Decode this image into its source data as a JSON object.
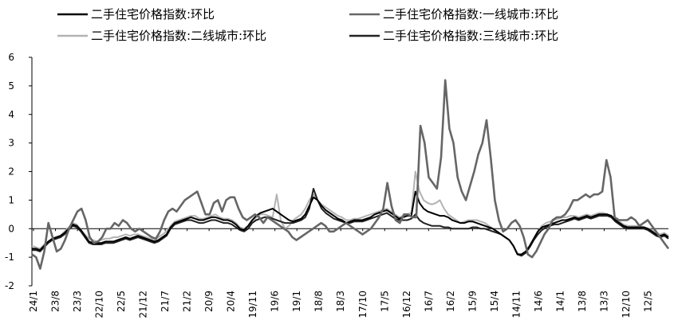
{
  "chart_data": {
    "type": "line",
    "title": "",
    "xlabel": "",
    "ylabel": "",
    "ylim": [
      -2,
      6
    ],
    "yticks": [
      -2,
      -1,
      0,
      1,
      2,
      3,
      4,
      5,
      6
    ],
    "grid": false,
    "legend_position": "top",
    "x_tick_labels": [
      "24/1",
      "23/8",
      "23/3",
      "22/10",
      "22/5",
      "21/12",
      "21/7",
      "21/2",
      "20/9",
      "20/4",
      "19/11",
      "19/6",
      "19/1",
      "18/8",
      "18/3",
      "17/10",
      "17/5",
      "16/12",
      "16/7",
      "16/2",
      "15/9",
      "15/4",
      "14/11",
      "14/6",
      "14/1",
      "13/8",
      "13/3",
      "12/10",
      "12/5"
    ],
    "series": [
      {
        "name": "二手住宅价格指数:环比",
        "color": "#000000",
        "values": [
          -0.7,
          -0.7,
          -0.75,
          -0.6,
          -0.45,
          -0.35,
          -0.3,
          -0.25,
          -0.15,
          0.0,
          0.15,
          0.1,
          -0.05,
          -0.25,
          -0.45,
          -0.5,
          -0.5,
          -0.5,
          -0.45,
          -0.45,
          -0.45,
          -0.4,
          -0.35,
          -0.3,
          -0.35,
          -0.3,
          -0.25,
          -0.3,
          -0.35,
          -0.4,
          -0.45,
          -0.4,
          -0.3,
          -0.2,
          0.05,
          0.2,
          0.25,
          0.3,
          0.35,
          0.4,
          0.35,
          0.3,
          0.3,
          0.35,
          0.4,
          0.4,
          0.35,
          0.3,
          0.3,
          0.25,
          0.15,
          0.0,
          -0.05,
          0.1,
          0.3,
          0.45,
          0.55,
          0.6,
          0.65,
          0.7,
          0.6,
          0.5,
          0.4,
          0.3,
          0.25,
          0.3,
          0.35,
          0.5,
          0.8,
          1.1,
          1.0,
          0.8,
          0.65,
          0.55,
          0.45,
          0.35,
          0.3,
          0.2,
          0.25,
          0.3,
          0.3,
          0.3,
          0.35,
          0.4,
          0.5,
          0.55,
          0.6,
          0.65,
          0.55,
          0.45,
          0.35,
          0.4,
          0.45,
          0.45,
          1.3,
          0.9,
          0.7,
          0.6,
          0.55,
          0.5,
          0.45,
          0.45,
          0.4,
          0.3,
          0.25,
          0.2,
          0.2,
          0.25,
          0.25,
          0.2,
          0.15,
          0.1,
          0.05,
          0.0,
          -0.1,
          -0.2,
          -0.3,
          -0.4,
          -0.6,
          -0.9,
          -0.9,
          -0.8,
          -0.6,
          -0.35,
          -0.1,
          0.05,
          0.1,
          0.15,
          0.2,
          0.25,
          0.3,
          0.3,
          0.35,
          0.4,
          0.35,
          0.4,
          0.45,
          0.4,
          0.45,
          0.5,
          0.5,
          0.5,
          0.45,
          0.3,
          0.2,
          0.1,
          0.05,
          0.05,
          0.05,
          0.05,
          0.05,
          0.0,
          -0.1,
          -0.2,
          -0.25,
          -0.2,
          -0.3
        ]
      },
      {
        "name": "二手住宅价格指数:一线城市:环比",
        "color": "#666666",
        "values": [
          -0.9,
          -1.0,
          -1.4,
          -0.8,
          0.2,
          -0.3,
          -0.8,
          -0.7,
          -0.4,
          0.0,
          0.3,
          0.6,
          0.7,
          0.3,
          -0.3,
          -0.5,
          -0.45,
          -0.3,
          0.0,
          0.0,
          0.2,
          0.1,
          0.3,
          0.2,
          0.0,
          -0.1,
          0.0,
          -0.1,
          -0.2,
          -0.3,
          -0.35,
          -0.1,
          0.3,
          0.6,
          0.7,
          0.6,
          0.8,
          1.0,
          1.1,
          1.2,
          1.3,
          0.9,
          0.5,
          0.5,
          0.9,
          1.0,
          0.6,
          1.0,
          1.1,
          1.1,
          0.7,
          0.4,
          0.3,
          0.4,
          0.5,
          0.4,
          0.2,
          0.4,
          0.3,
          0.2,
          0.1,
          0.0,
          -0.1,
          -0.3,
          -0.4,
          -0.3,
          -0.2,
          -0.1,
          0.0,
          0.1,
          0.2,
          0.1,
          -0.1,
          -0.1,
          0.0,
          0.1,
          0.2,
          0.1,
          0.0,
          -0.1,
          -0.2,
          -0.1,
          0.0,
          0.2,
          0.4,
          0.7,
          1.6,
          0.8,
          0.3,
          0.2,
          0.5,
          0.5,
          0.4,
          0.4,
          3.6,
          3.0,
          1.8,
          1.6,
          1.4,
          2.5,
          5.2,
          3.5,
          3.0,
          1.8,
          1.3,
          1.0,
          1.5,
          2.0,
          2.6,
          3.0,
          3.8,
          2.5,
          1.0,
          0.3,
          -0.1,
          0.0,
          0.2,
          0.3,
          0.1,
          -0.3,
          -0.9,
          -1.0,
          -0.8,
          -0.5,
          -0.2,
          0.0,
          0.3,
          0.4,
          0.4,
          0.5,
          0.7,
          1.0,
          1.0,
          1.1,
          1.2,
          1.1,
          1.2,
          1.2,
          1.3,
          2.4,
          1.8,
          0.4,
          0.3,
          0.3,
          0.3,
          0.4,
          0.3,
          0.1,
          0.2,
          0.3,
          0.1,
          -0.1,
          -0.3,
          -0.5,
          -0.7
        ]
      },
      {
        "name": "二手住宅价格指数:二线城市:环比",
        "color": "#b3b3b3",
        "values": [
          -0.6,
          -0.65,
          -0.7,
          -0.55,
          -0.45,
          -0.35,
          -0.3,
          -0.25,
          -0.1,
          0.05,
          0.2,
          0.15,
          -0.05,
          -0.2,
          -0.35,
          -0.4,
          -0.45,
          -0.4,
          -0.35,
          -0.35,
          -0.3,
          -0.3,
          -0.25,
          -0.2,
          -0.25,
          -0.2,
          -0.2,
          -0.25,
          -0.3,
          -0.35,
          -0.4,
          -0.3,
          -0.2,
          -0.1,
          0.1,
          0.25,
          0.3,
          0.35,
          0.4,
          0.45,
          0.45,
          0.35,
          0.35,
          0.4,
          0.45,
          0.5,
          0.4,
          0.35,
          0.35,
          0.3,
          0.2,
          0.05,
          0.0,
          0.1,
          0.25,
          0.4,
          0.5,
          0.5,
          0.45,
          0.4,
          1.2,
          0.3,
          0.0,
          0.1,
          0.3,
          0.4,
          0.5,
          0.7,
          1.0,
          1.2,
          1.0,
          0.85,
          0.75,
          0.65,
          0.55,
          0.45,
          0.4,
          0.3,
          0.3,
          0.35,
          0.35,
          0.4,
          0.45,
          0.5,
          0.55,
          0.6,
          0.65,
          0.7,
          0.6,
          0.5,
          0.4,
          0.45,
          0.5,
          0.55,
          2.0,
          1.3,
          1.0,
          0.9,
          0.85,
          0.9,
          1.0,
          0.7,
          0.5,
          0.4,
          0.3,
          0.2,
          0.25,
          0.3,
          0.3,
          0.3,
          0.25,
          0.2,
          0.1,
          0.0,
          -0.1,
          -0.2,
          -0.3,
          -0.4,
          -0.6,
          -0.85,
          -0.95,
          -0.85,
          -0.6,
          -0.35,
          -0.1,
          0.1,
          0.2,
          0.25,
          0.3,
          0.35,
          0.4,
          0.4,
          0.45,
          0.45,
          0.4,
          0.45,
          0.5,
          0.45,
          0.5,
          0.55,
          0.55,
          0.5,
          0.45,
          0.35,
          0.25,
          0.15,
          0.1,
          0.1,
          0.1,
          0.1,
          0.05,
          0.0,
          -0.05,
          -0.15,
          -0.2,
          -0.15,
          -0.25
        ]
      },
      {
        "name": "二手住宅价格指数:三线城市:环比",
        "color": "#222222",
        "values": [
          -0.75,
          -0.75,
          -0.8,
          -0.65,
          -0.5,
          -0.4,
          -0.35,
          -0.3,
          -0.2,
          -0.05,
          0.1,
          0.05,
          -0.1,
          -0.3,
          -0.5,
          -0.55,
          -0.55,
          -0.55,
          -0.5,
          -0.5,
          -0.5,
          -0.45,
          -0.4,
          -0.35,
          -0.4,
          -0.35,
          -0.3,
          -0.35,
          -0.4,
          -0.45,
          -0.5,
          -0.45,
          -0.35,
          -0.25,
          0.0,
          0.15,
          0.2,
          0.25,
          0.3,
          0.3,
          0.25,
          0.2,
          0.2,
          0.25,
          0.3,
          0.3,
          0.25,
          0.2,
          0.2,
          0.15,
          0.05,
          -0.05,
          -0.1,
          0.0,
          0.2,
          0.3,
          0.35,
          0.4,
          0.4,
          0.35,
          0.3,
          0.25,
          0.2,
          0.2,
          0.2,
          0.25,
          0.3,
          0.4,
          0.7,
          1.4,
          1.0,
          0.7,
          0.55,
          0.45,
          0.35,
          0.3,
          0.25,
          0.2,
          0.2,
          0.25,
          0.25,
          0.25,
          0.3,
          0.35,
          0.4,
          0.45,
          0.5,
          0.55,
          0.45,
          0.35,
          0.3,
          0.3,
          0.3,
          0.35,
          0.5,
          0.3,
          0.2,
          0.15,
          0.1,
          0.1,
          0.1,
          0.05,
          0.05,
          0.0,
          0.0,
          0.0,
          0.0,
          0.0,
          0.05,
          0.05,
          0.0,
          0.0,
          -0.05,
          -0.1,
          -0.15,
          -0.2,
          -0.3,
          -0.4,
          -0.6,
          -0.9,
          -0.95,
          -0.85,
          -0.65,
          -0.4,
          -0.2,
          -0.05,
          0.05,
          0.1,
          0.15,
          0.15,
          0.2,
          0.25,
          0.3,
          0.35,
          0.3,
          0.35,
          0.4,
          0.35,
          0.4,
          0.45,
          0.45,
          0.45,
          0.4,
          0.25,
          0.15,
          0.05,
          0.0,
          0.0,
          0.0,
          0.0,
          0.0,
          -0.05,
          -0.15,
          -0.25,
          -0.3,
          -0.25,
          -0.35
        ]
      }
    ]
  }
}
